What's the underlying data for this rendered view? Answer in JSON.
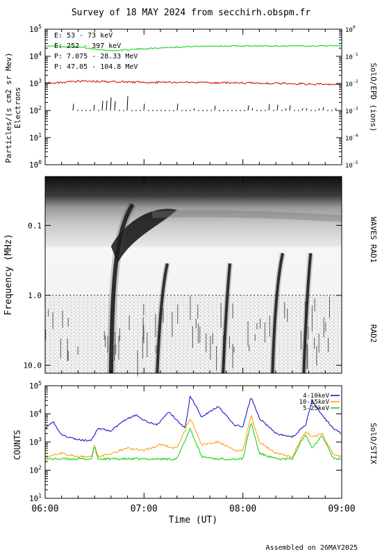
{
  "page": {
    "title": "Survey of 18 MAY 2024 from secchirh.obspm.fr",
    "footer": "Assembled on 26MAY2025"
  },
  "chart_data": [
    {
      "type": "line",
      "panel": "particles",
      "ylabel": "Particles/(s cm2 sr Mev)",
      "ylabel2": "Electrons",
      "right_label": "SolO/EPD (ions)",
      "yscale": "log",
      "ylim": [
        1,
        100000
      ],
      "y_ticks": [
        "10^0",
        "10^1",
        "10^2",
        "10^3",
        "10^4",
        "10^5"
      ],
      "y2lim": [
        1e-05,
        1
      ],
      "y2_ticks": [
        "10^-5",
        "10^-4",
        "10^-3",
        "10^-2",
        "10^-1",
        "10^0"
      ],
      "xlim": [
        "06:00",
        "09:00"
      ],
      "series": [
        {
          "name": "E: 53 - 73 keV",
          "color": "#00d000",
          "axis": "left",
          "x": [
            "06:00",
            "06:20",
            "06:40",
            "07:00",
            "07:20",
            "07:40",
            "08:00",
            "08:20",
            "08:40",
            "09:00"
          ],
          "values": [
            24000,
            22000,
            16000,
            19000,
            22000,
            24000,
            24000,
            24000,
            24000,
            25000
          ]
        },
        {
          "name": "E: 252 - 397 keV",
          "color": "#cc0000",
          "axis": "left",
          "x": [
            "06:00",
            "06:20",
            "06:40",
            "07:00",
            "07:20",
            "07:40",
            "08:00",
            "08:20",
            "08:40",
            "09:00"
          ],
          "values": [
            1000,
            1200,
            1150,
            1100,
            1100,
            1050,
            1050,
            1000,
            950,
            900
          ]
        },
        {
          "name": "P: 7.075 - 28.33 MeV",
          "color": "#000000",
          "axis": "right",
          "x": [
            "06:00",
            "06:30",
            "06:45",
            "07:00",
            "07:30",
            "08:00",
            "08:30",
            "09:00"
          ],
          "values": [
            0.001,
            0.001,
            0.0025,
            0.001,
            0.001,
            0.001,
            0.001,
            0.001
          ]
        },
        {
          "name": "P: 47.05 - 104.8 MeV",
          "color": "#0000cc",
          "axis": "right",
          "x": [],
          "values": []
        }
      ]
    },
    {
      "type": "heatmap",
      "panel": "waves",
      "ylabel": "Frequency (MHz)",
      "right_label_top": "WAVES RAD1",
      "right_label_bottom": "RAD2",
      "y_ticks": [
        "0.1",
        "1.0",
        "10.0"
      ],
      "yscale": "log",
      "ylim": [
        0.02,
        13
      ],
      "colormap": "gray (dark = intense)",
      "bursts": [
        {
          "start": "06:40",
          "end": "06:54",
          "fmin": 0.05,
          "fmax": 14
        },
        {
          "start": "07:08",
          "end": "07:15",
          "fmin": 0.35,
          "fmax": 14
        },
        {
          "start": "07:48",
          "end": "07:53",
          "fmin": 0.35,
          "fmax": 14
        },
        {
          "start": "08:18",
          "end": "08:25",
          "fmin": 0.25,
          "fmax": 14
        },
        {
          "start": "08:37",
          "end": "08:42",
          "fmin": 0.25,
          "fmax": 14
        }
      ]
    },
    {
      "type": "line",
      "panel": "stix",
      "ylabel": "COUNTS",
      "right_label": "SolO/STIX",
      "yscale": "log",
      "ylim": [
        10,
        100000
      ],
      "y_ticks": [
        "10^1",
        "10^2",
        "10^3",
        "10^4",
        "10^5"
      ],
      "xlabel": "Time (UT)",
      "x_ticks": [
        "06:00",
        "07:00",
        "08:00",
        "09:00"
      ],
      "xlim": [
        "06:00",
        "09:00"
      ],
      "series": [
        {
          "name": "4-10keV",
          "color": "#0000cc",
          "x": [
            "06:00",
            "06:05",
            "06:10",
            "06:20",
            "06:28",
            "06:32",
            "06:40",
            "06:48",
            "06:55",
            "07:00",
            "07:08",
            "07:15",
            "07:20",
            "07:25",
            "07:28",
            "07:35",
            "07:45",
            "07:55",
            "08:00",
            "08:05",
            "08:10",
            "08:20",
            "08:30",
            "08:38",
            "08:42",
            "08:48",
            "08:55",
            "09:00"
          ],
          "values": [
            3000,
            5000,
            1800,
            1200,
            1100,
            3000,
            2500,
            6000,
            9000,
            6000,
            4000,
            12000,
            6000,
            3000,
            45000,
            8000,
            18000,
            4000,
            3500,
            40000,
            7000,
            2000,
            1500,
            4000,
            30000,
            9000,
            3000,
            2000
          ]
        },
        {
          "name": "10-15keV",
          "color": "#ff9900",
          "x": [
            "06:00",
            "06:10",
            "06:20",
            "06:28",
            "06:30",
            "06:32",
            "06:40",
            "06:50",
            "07:00",
            "07:10",
            "07:20",
            "07:28",
            "07:35",
            "07:45",
            "07:55",
            "08:00",
            "08:05",
            "08:10",
            "08:20",
            "08:30",
            "08:38",
            "08:42",
            "08:48",
            "08:55",
            "09:00"
          ],
          "values": [
            300,
            400,
            300,
            300,
            800,
            300,
            400,
            600,
            500,
            800,
            600,
            7000,
            800,
            1000,
            500,
            500,
            9000,
            1000,
            400,
            300,
            2500,
            1500,
            2000,
            350,
            300
          ]
        },
        {
          "name": "5-25keV",
          "color": "#00d000",
          "x": [
            "06:00",
            "06:10",
            "06:20",
            "06:28",
            "06:30",
            "06:32",
            "06:40",
            "06:50",
            "07:00",
            "07:20",
            "07:28",
            "07:35",
            "07:45",
            "07:55",
            "08:00",
            "08:05",
            "08:10",
            "08:20",
            "08:30",
            "08:38",
            "08:42",
            "08:48",
            "08:55",
            "09:00"
          ],
          "values": [
            250,
            250,
            250,
            250,
            700,
            250,
            250,
            250,
            250,
            250,
            3000,
            300,
            250,
            250,
            250,
            5000,
            400,
            250,
            250,
            2000,
            600,
            1800,
            250,
            250
          ]
        }
      ]
    }
  ]
}
